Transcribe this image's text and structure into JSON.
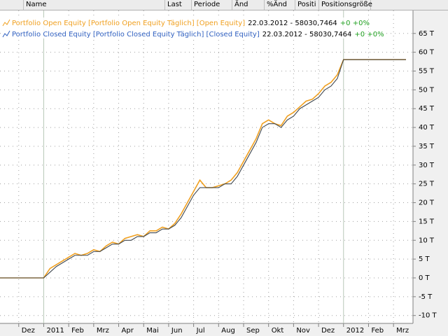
{
  "header": {
    "columns": [
      "Name",
      "Last",
      "Periode",
      "Änd",
      "%Änd",
      "Positi",
      "Positionsgröße"
    ]
  },
  "chart_data": {
    "type": "line",
    "categories": [
      null,
      null,
      null,
      "Dez",
      null,
      null,
      null,
      "2011",
      null,
      null,
      null,
      "Feb",
      null,
      null,
      null,
      "Mrz",
      null,
      null,
      null,
      "Apr",
      null,
      null,
      null,
      "Mai",
      null,
      null,
      null,
      "Jun",
      null,
      null,
      null,
      "Jul",
      null,
      null,
      null,
      "Aug",
      null,
      null,
      null,
      "Sep",
      null,
      null,
      null,
      "Okt",
      null,
      null,
      null,
      "Nov",
      null,
      null,
      null,
      "Dez",
      null,
      null,
      null,
      "2012",
      null,
      null,
      null,
      "Feb",
      null,
      null,
      null,
      "Mrz",
      null,
      null
    ],
    "series": [
      {
        "name": "Portfolio Open Equity [Portfolio Open Equity  Täglich] [Open Equity]",
        "last_label": "22.03.2012 - 58030,7464",
        "change_label": "+0 +0%",
        "color": "#f0a020",
        "values": [
          0,
          0,
          0,
          0,
          0,
          0,
          0,
          0,
          2500,
          3500,
          4500,
          5500,
          6500,
          6000,
          6500,
          7500,
          7000,
          8500,
          9500,
          9000,
          10500,
          11000,
          11500,
          11000,
          12500,
          12500,
          13500,
          13000,
          14500,
          17000,
          20000,
          23000,
          26000,
          24000,
          24000,
          24500,
          25000,
          26000,
          28000,
          31000,
          34000,
          37000,
          41000,
          42000,
          41000,
          40500,
          43000,
          44000,
          45500,
          47000,
          47500,
          49000,
          51000,
          52000,
          54000,
          58030.7464,
          58030.7464,
          58030.7464,
          58030.7464,
          58030.7464,
          58030.7464,
          58030.7464,
          58030.7464,
          58030.7464,
          58030.7464,
          58030.7464
        ]
      },
      {
        "name": "Portfolio Closed Equity [Portfolio Closed Equity  Täglich] [Closed Equity]",
        "last_label": "22.03.2012 - 58030,7464",
        "change_label": "+0 +0%",
        "color": "#404850",
        "values": [
          0,
          0,
          0,
          0,
          0,
          0,
          0,
          0,
          1500,
          3000,
          4000,
          5000,
          6000,
          6000,
          6000,
          7000,
          7000,
          8000,
          9000,
          9000,
          10000,
          10000,
          11000,
          11000,
          12000,
          12000,
          13000,
          13000,
          14000,
          16000,
          19000,
          22000,
          24000,
          24000,
          24000,
          24000,
          25000,
          25000,
          27000,
          30000,
          33000,
          36000,
          40000,
          41000,
          41000,
          40000,
          42000,
          43000,
          45000,
          46000,
          47000,
          48000,
          50000,
          51000,
          53000,
          58030.7464,
          58030.7464,
          58030.7464,
          58030.7464,
          58030.7464,
          58030.7464,
          58030.7464,
          58030.7464,
          58030.7464,
          58030.7464,
          58030.7464
        ]
      }
    ],
    "ylim": [
      -12100,
      71100
    ],
    "yticks": [
      {
        "value": -10000,
        "label": "-10 T"
      },
      {
        "value": -5000,
        "label": "-5 T"
      },
      {
        "value": 0,
        "label": "0 T"
      },
      {
        "value": 5000,
        "label": "5 T"
      },
      {
        "value": 10000,
        "label": "10 T"
      },
      {
        "value": 15000,
        "label": "15 T"
      },
      {
        "value": 20000,
        "label": "20 T"
      },
      {
        "value": 25000,
        "label": "25 T"
      },
      {
        "value": 30000,
        "label": "30 T"
      },
      {
        "value": 35000,
        "label": "35 T"
      },
      {
        "value": 40000,
        "label": "40 T"
      },
      {
        "value": 45000,
        "label": "45 T"
      },
      {
        "value": 50000,
        "label": "50 T"
      },
      {
        "value": 55000,
        "label": "55 T"
      },
      {
        "value": 60000,
        "label": "60 T"
      },
      {
        "value": 65000,
        "label": "65 T"
      }
    ],
    "grid": true
  }
}
